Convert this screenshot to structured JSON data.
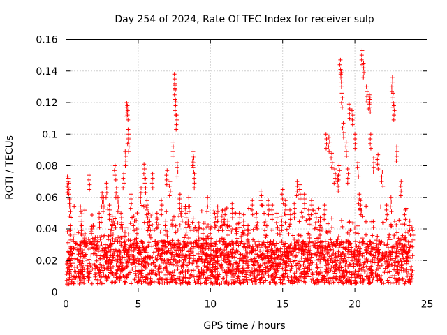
{
  "chart_data": {
    "type": "scatter",
    "title": "Day 254 of 2024, Rate Of TEC Index for receiver sulp",
    "xlabel": "GPS time / hours",
    "ylabel": "ROTI / TECUs",
    "xlim": [
      0,
      25
    ],
    "ylim": [
      0,
      0.16
    ],
    "xticks": [
      0,
      5,
      10,
      15,
      20,
      25
    ],
    "xtick_labels": [
      "0",
      "5",
      "10",
      "15",
      "20",
      "25"
    ],
    "yticks": [
      0,
      0.02,
      0.04,
      0.06,
      0.08,
      0.1,
      0.12,
      0.14,
      0.16
    ],
    "ytick_labels": [
      "0",
      "0.02",
      "0.04",
      "0.06",
      "0.08",
      "0.1",
      "0.12",
      "0.14",
      "0.16"
    ],
    "grid": true,
    "marker": "+",
    "color": "#ff0000",
    "series": [
      {
        "name": "ROTI",
        "x": [
          0.1,
          0.15,
          0.2,
          0.25,
          0.3,
          0.5,
          0.8,
          1.0,
          1.1,
          1.3,
          1.6,
          1.8,
          2.0,
          2.3,
          2.5,
          2.6,
          2.8,
          3.0,
          3.2,
          3.4,
          3.5,
          3.6,
          3.8,
          4.0,
          4.1,
          4.2,
          4.25,
          4.3,
          4.35,
          4.5,
          4.7,
          4.9,
          5.2,
          5.4,
          5.5,
          5.6,
          5.7,
          5.8,
          6.0,
          6.3,
          6.6,
          6.9,
          7.0,
          7.2,
          7.4,
          7.5,
          7.55,
          7.6,
          7.65,
          7.7,
          7.9,
          8.0,
          8.3,
          8.5,
          8.8,
          8.85,
          8.9,
          9.2,
          9.5,
          9.8,
          10.0,
          10.3,
          10.5,
          10.8,
          11.0,
          11.2,
          11.5,
          11.8,
          12.0,
          12.3,
          12.6,
          12.9,
          13.2,
          13.5,
          13.8,
          14.0,
          14.3,
          14.6,
          14.9,
          15.0,
          15.2,
          15.5,
          15.8,
          16.0,
          16.2,
          16.5,
          16.8,
          17.0,
          17.3,
          17.6,
          17.9,
          18.0,
          18.2,
          18.4,
          18.6,
          18.8,
          18.9,
          19.0,
          19.05,
          19.1,
          19.2,
          19.4,
          19.5,
          19.6,
          19.8,
          20.0,
          20.2,
          20.3,
          20.4,
          20.5,
          20.6,
          20.8,
          21.0,
          21.05,
          21.1,
          21.3,
          21.6,
          21.9,
          22.2,
          22.5,
          22.6,
          22.65,
          22.7,
          22.9,
          23.2,
          23.5,
          23.8,
          24.0
        ],
        "y": [
          0.073,
          0.072,
          0.065,
          0.057,
          0.042,
          0.035,
          0.03,
          0.054,
          0.045,
          0.038,
          0.074,
          0.04,
          0.033,
          0.05,
          0.063,
          0.06,
          0.069,
          0.055,
          0.048,
          0.08,
          0.066,
          0.06,
          0.05,
          0.075,
          0.089,
          0.12,
          0.118,
          0.103,
          0.098,
          0.062,
          0.048,
          0.04,
          0.066,
          0.081,
          0.072,
          0.058,
          0.05,
          0.045,
          0.075,
          0.05,
          0.058,
          0.045,
          0.077,
          0.07,
          0.095,
          0.138,
          0.131,
          0.121,
          0.112,
          0.082,
          0.062,
          0.054,
          0.05,
          0.06,
          0.089,
          0.085,
          0.075,
          0.044,
          0.04,
          0.06,
          0.04,
          0.05,
          0.054,
          0.048,
          0.052,
          0.045,
          0.056,
          0.04,
          0.05,
          0.045,
          0.042,
          0.058,
          0.05,
          0.064,
          0.045,
          0.058,
          0.055,
          0.05,
          0.048,
          0.065,
          0.058,
          0.052,
          0.056,
          0.07,
          0.068,
          0.062,
          0.052,
          0.058,
          0.05,
          0.045,
          0.055,
          0.1,
          0.098,
          0.088,
          0.078,
          0.073,
          0.08,
          0.147,
          0.139,
          0.126,
          0.107,
          0.095,
          0.078,
          0.119,
          0.115,
          0.1,
          0.082,
          0.062,
          0.058,
          0.153,
          0.145,
          0.13,
          0.125,
          0.123,
          0.1,
          0.085,
          0.087,
          0.076,
          0.055,
          0.06,
          0.136,
          0.126,
          0.118,
          0.092,
          0.07,
          0.052,
          0.045,
          0.039
        ]
      }
    ],
    "dense_band": {
      "x_range": [
        0.05,
        24.0
      ],
      "base_low": 0.005,
      "base_high": 0.032
    }
  }
}
